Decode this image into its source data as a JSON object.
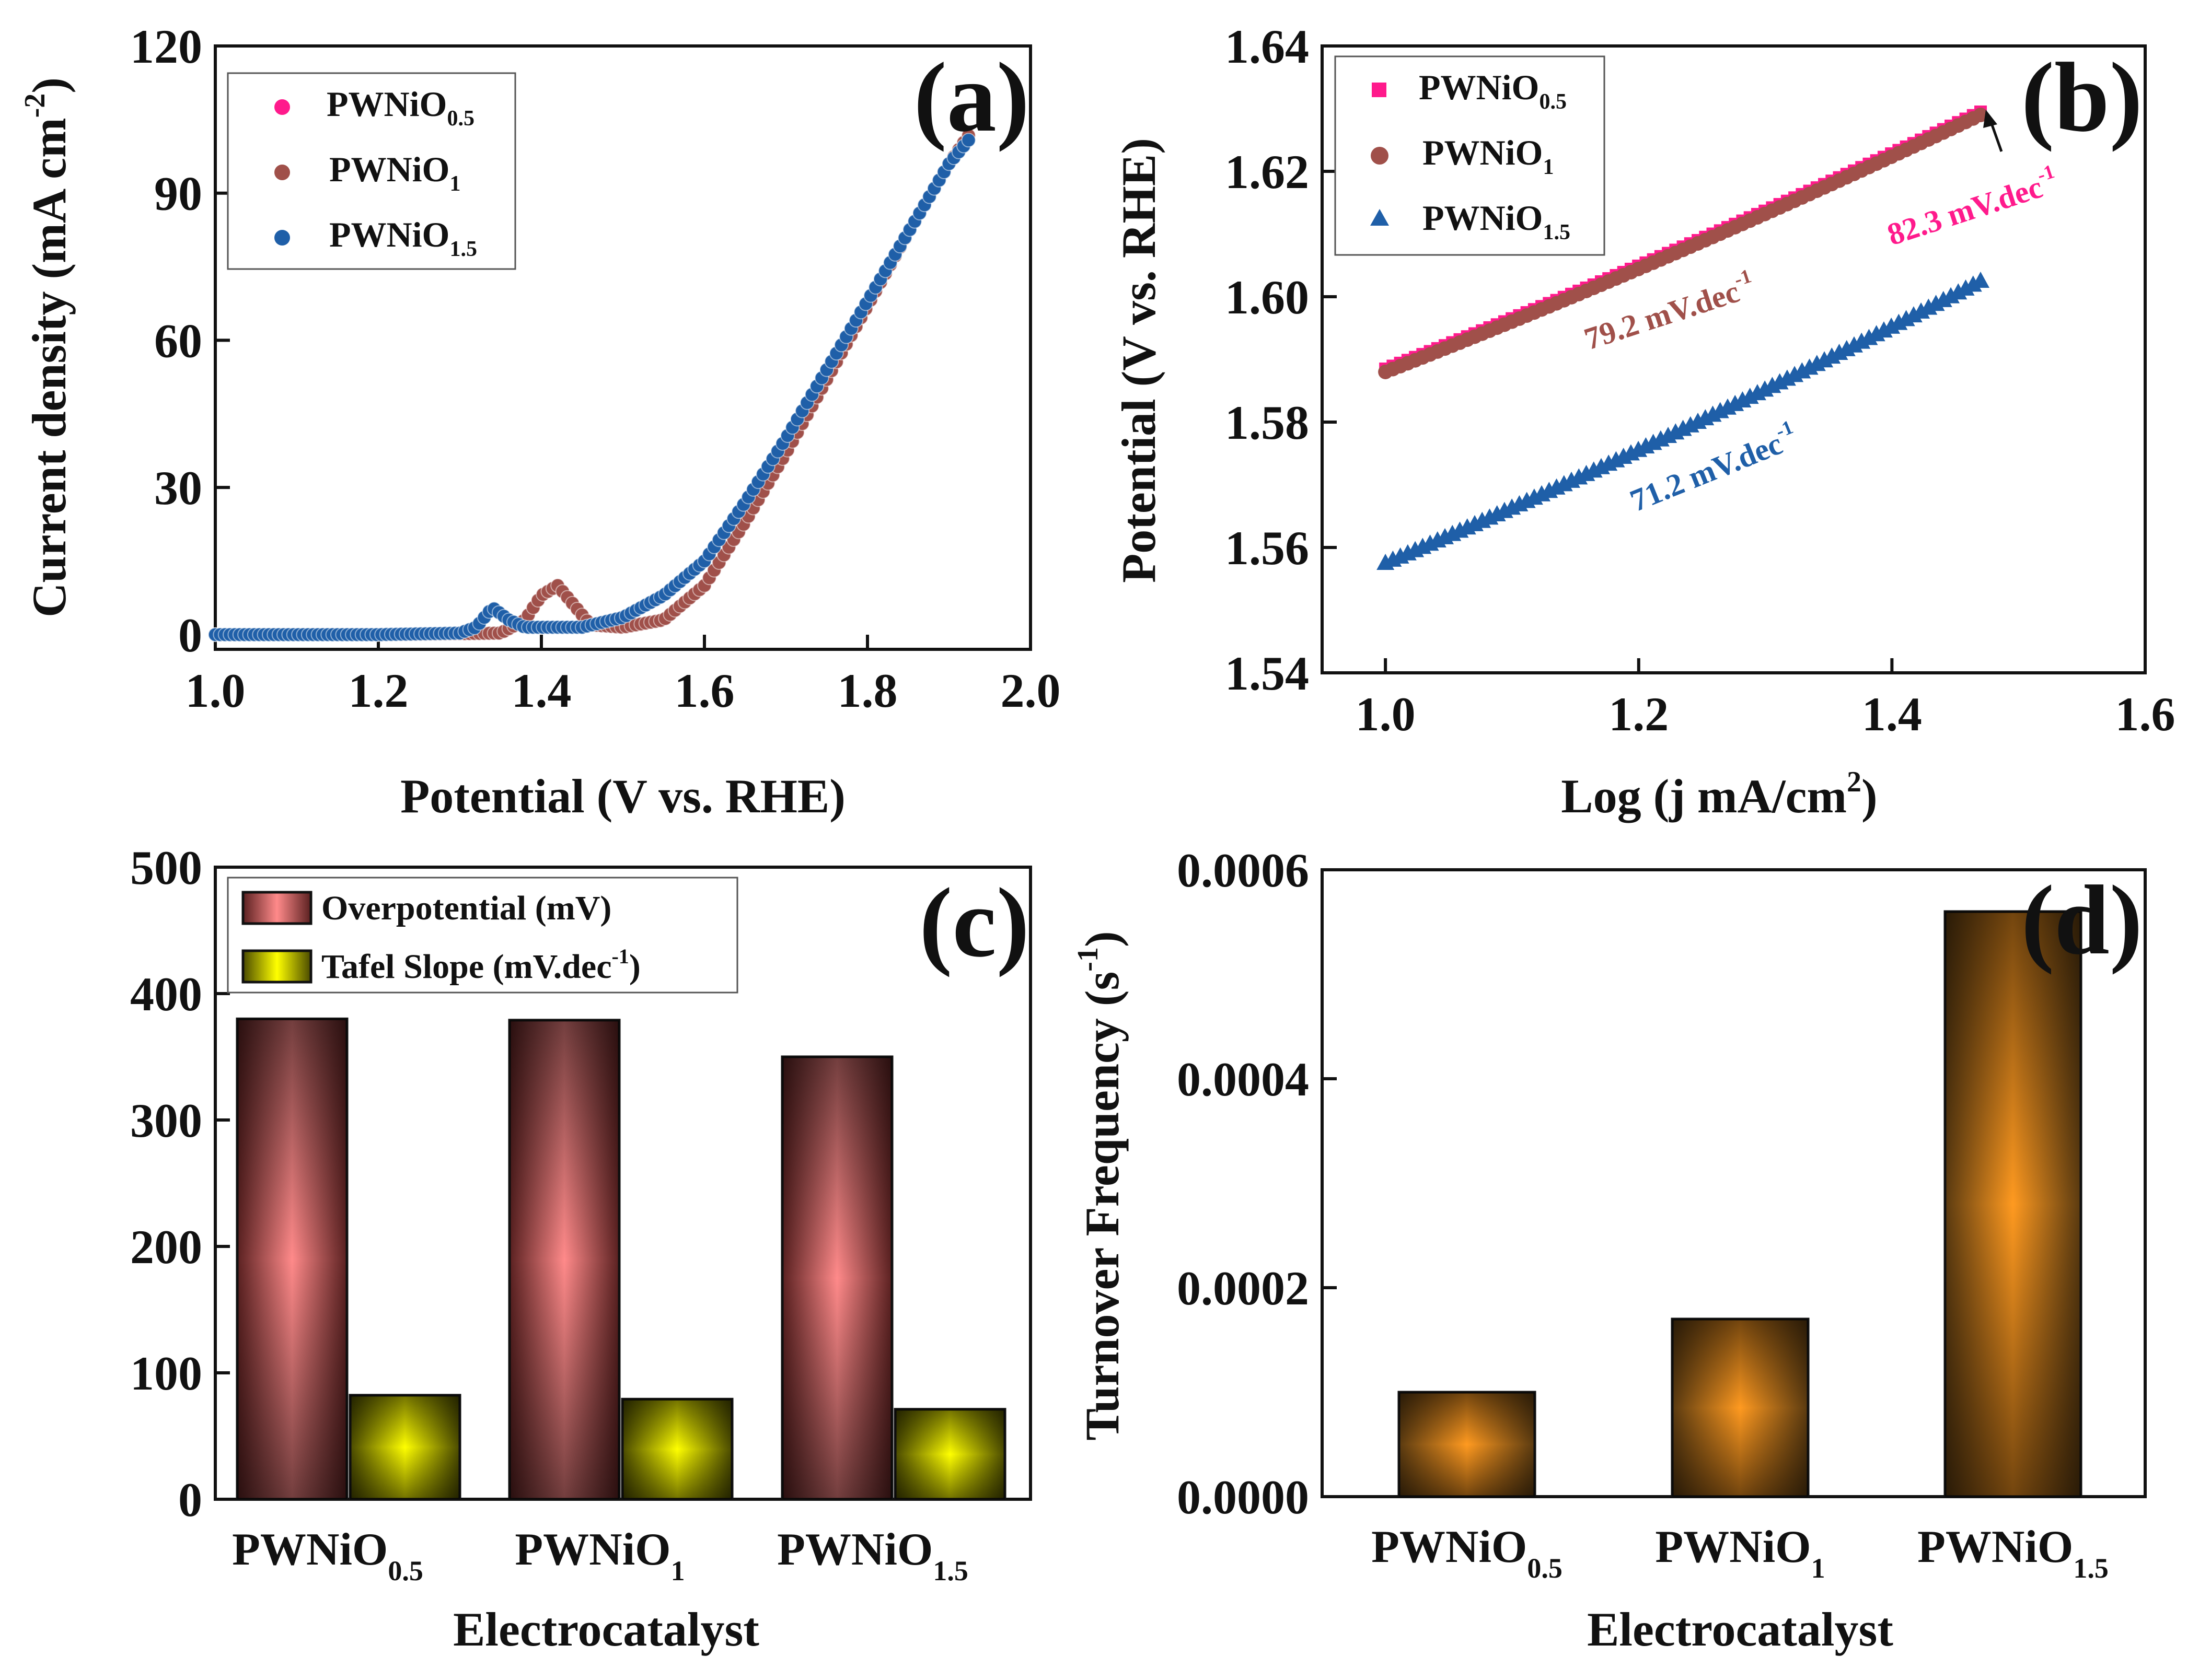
{
  "colors": {
    "pwnio05": "#ff1a8c",
    "pwnio1": "#a0504a",
    "pwnio15": "#1f5fa8",
    "overpotential": "#ff8a8a",
    "overpotential_dark": "#4a1a1a",
    "tafel": "#ffff00",
    "tafel_dark": "#4a4a00",
    "tof": "#ff9a20",
    "tof_dark": "#4a3010"
  },
  "chart_data": [
    {
      "panel": "(a)",
      "type": "scatter",
      "xlabel": "Potential (V vs. RHE)",
      "ylabel_main": "Current density (mA cm",
      "ylabel_sup": "-2",
      "ylabel_close": ")",
      "xlim": [
        1.0,
        2.0
      ],
      "ylim": [
        -3,
        120
      ],
      "xticks": [
        "1.0",
        "1.2",
        "1.4",
        "1.6",
        "1.8",
        "2.0"
      ],
      "xtick_values": [
        1.0,
        1.2,
        1.4,
        1.6,
        1.8,
        2.0
      ],
      "yticks": [
        "0",
        "30",
        "60",
        "90",
        "120"
      ],
      "ytick_values": [
        0,
        30,
        60,
        90,
        120
      ],
      "legend": [
        {
          "base": "PWNiO",
          "sub": "0.5"
        },
        {
          "base": "PWNiO",
          "sub": "1"
        },
        {
          "base": "PWNiO",
          "sub": "1.5"
        }
      ],
      "series": [
        {
          "name": "PWNiO0.5",
          "x": [
            1.0,
            1.2,
            1.35,
            1.38,
            1.4,
            1.42,
            1.44,
            1.46,
            1.5,
            1.55,
            1.6,
            1.65,
            1.7,
            1.75,
            1.8,
            1.85,
            1.9,
            1.925
          ],
          "y": [
            0,
            0,
            0.3,
            3,
            8,
            10,
            6,
            2,
            1.5,
            3,
            10,
            23,
            37,
            52,
            67,
            82,
            96,
            102
          ]
        },
        {
          "name": "PWNiO1",
          "x": [
            1.0,
            1.2,
            1.35,
            1.38,
            1.4,
            1.42,
            1.44,
            1.46,
            1.5,
            1.55,
            1.6,
            1.65,
            1.7,
            1.75,
            1.8,
            1.85,
            1.9,
            1.925
          ],
          "y": [
            0,
            0,
            0.3,
            3,
            8,
            10,
            6,
            2,
            1.5,
            3,
            10,
            23,
            37,
            52,
            67,
            82,
            96,
            102
          ]
        },
        {
          "name": "PWNiO1.5",
          "x": [
            1.0,
            1.2,
            1.3,
            1.32,
            1.34,
            1.36,
            1.38,
            1.45,
            1.5,
            1.55,
            1.6,
            1.65,
            1.7,
            1.75,
            1.8,
            1.85,
            1.9,
            1.925
          ],
          "y": [
            0,
            0,
            0.3,
            1.5,
            5.5,
            3,
            1.5,
            1.5,
            3.5,
            8,
            15,
            27,
            40,
            54,
            68,
            82,
            96,
            101
          ]
        }
      ],
      "label_char": "a"
    },
    {
      "panel": "(b)",
      "type": "scatter",
      "xlabel_main": "Log (j mA/cm",
      "xlabel_sup": "2",
      "xlabel_close": ")",
      "ylabel": "Potential (V vs. RHE)",
      "xlim": [
        0.95,
        1.6
      ],
      "ylim": [
        1.54,
        1.64
      ],
      "xticks": [
        "1.0",
        "1.2",
        "1.4",
        "1.6"
      ],
      "xtick_values": [
        1.0,
        1.2,
        1.4,
        1.6
      ],
      "yticks": [
        "1.54",
        "1.56",
        "1.58",
        "1.60",
        "1.62",
        "1.64"
      ],
      "ytick_values": [
        1.54,
        1.56,
        1.58,
        1.6,
        1.62,
        1.64
      ],
      "legend": [
        {
          "base": "PWNiO",
          "sub": "0.5"
        },
        {
          "base": "PWNiO",
          "sub": "1"
        },
        {
          "base": "PWNiO",
          "sub": "1.5"
        }
      ],
      "series": [
        {
          "name": "PWNiO0.5",
          "x": [
            1.0,
            1.47
          ],
          "y": [
            1.5885,
            1.6295
          ]
        },
        {
          "name": "PWNiO1",
          "x": [
            1.0,
            1.47
          ],
          "y": [
            1.588,
            1.629
          ]
        },
        {
          "name": "PWNiO1.5",
          "x": [
            1.0,
            1.47
          ],
          "y": [
            1.5575,
            1.6025
          ]
        }
      ],
      "annotations": [
        {
          "text": "82.3 mV.dec",
          "sup": "-1",
          "color": "pwnio05"
        },
        {
          "text": "79.2 mV.dec",
          "sup": "-1",
          "color": "pwnio1"
        },
        {
          "text": "71.2 mV.dec",
          "sup": "-1",
          "color": "pwnio15"
        }
      ],
      "label_char": "b"
    },
    {
      "panel": "(c)",
      "type": "bar",
      "xlabel": "Electrocatalyst",
      "ylim": [
        0,
        500
      ],
      "yticks": [
        "0",
        "100",
        "200",
        "300",
        "400",
        "500"
      ],
      "ytick_values": [
        0,
        100,
        200,
        300,
        400,
        500
      ],
      "categories": [
        {
          "base": "PWNiO",
          "sub": "0.5"
        },
        {
          "base": "PWNiO",
          "sub": "1"
        },
        {
          "base": "PWNiO",
          "sub": "1.5"
        }
      ],
      "series": [
        {
          "name": "Overpotential (mV)",
          "values": [
            380,
            379,
            350
          ]
        },
        {
          "name": "Tafel Slope (mV.dec",
          "sup": "-1",
          "close": ")",
          "values": [
            82.3,
            79.2,
            71.2
          ]
        }
      ],
      "label_char": "c"
    },
    {
      "panel": "(d)",
      "type": "bar",
      "xlabel": "Electrocatalyst",
      "ylabel_main": "Turnover Frequency (s",
      "ylabel_sup": "-1",
      "ylabel_close": ")",
      "ylim": [
        0,
        0.0006
      ],
      "yticks": [
        "0.0000",
        "0.0002",
        "0.0004",
        "0.0006"
      ],
      "ytick_values": [
        0,
        0.0002,
        0.0004,
        0.0006
      ],
      "categories": [
        {
          "base": "PWNiO",
          "sub": "0.5"
        },
        {
          "base": "PWNiO",
          "sub": "1"
        },
        {
          "base": "PWNiO",
          "sub": "1.5"
        }
      ],
      "values": [
        0.0001,
        0.00017,
        0.00056
      ],
      "label_char": "d"
    }
  ]
}
